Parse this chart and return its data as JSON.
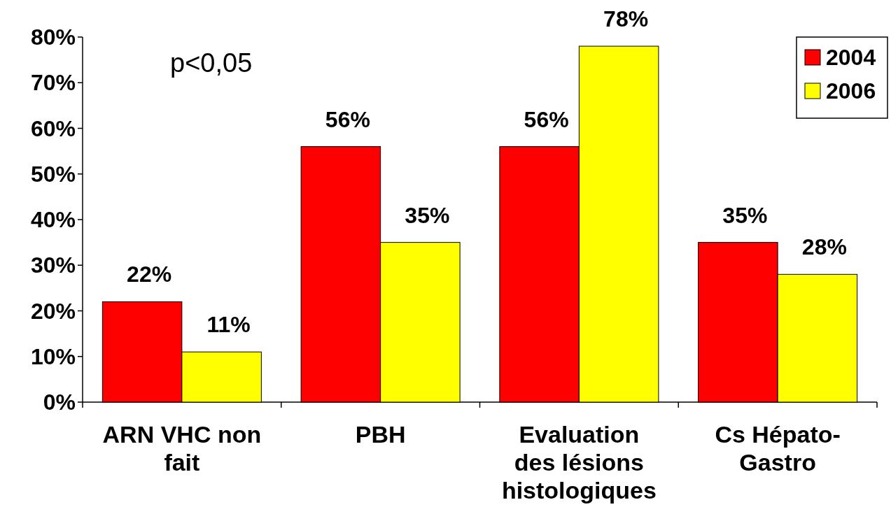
{
  "chart_data": {
    "type": "bar",
    "categories": [
      "ARN VHC non fait",
      "PBH",
      "Evaluation des lésions histologiques",
      "Cs Hépato-Gastro"
    ],
    "series": [
      {
        "name": "2004",
        "color": "#ff0000",
        "values": [
          22,
          56,
          56,
          35
        ],
        "value_labels": [
          "22%",
          "56%",
          "56%",
          "35%"
        ]
      },
      {
        "name": "2006",
        "color": "#ffff00",
        "values": [
          11,
          35,
          78,
          28
        ],
        "value_labels": [
          "11%",
          "35%",
          "78%",
          "28%"
        ]
      }
    ],
    "ylim": [
      0,
      80
    ],
    "yticks": [
      {
        "value": 0,
        "label": "0%"
      },
      {
        "value": 10,
        "label": "10%"
      },
      {
        "value": 20,
        "label": "20%"
      },
      {
        "value": 30,
        "label": "30%"
      },
      {
        "value": 40,
        "label": "40%"
      },
      {
        "value": 50,
        "label": "50%"
      },
      {
        "value": 60,
        "label": "60%"
      },
      {
        "value": 70,
        "label": "70%"
      },
      {
        "value": 80,
        "label": "80%"
      }
    ],
    "annotations": [
      "p<0,05"
    ],
    "legend": "top right",
    "grid": false
  }
}
